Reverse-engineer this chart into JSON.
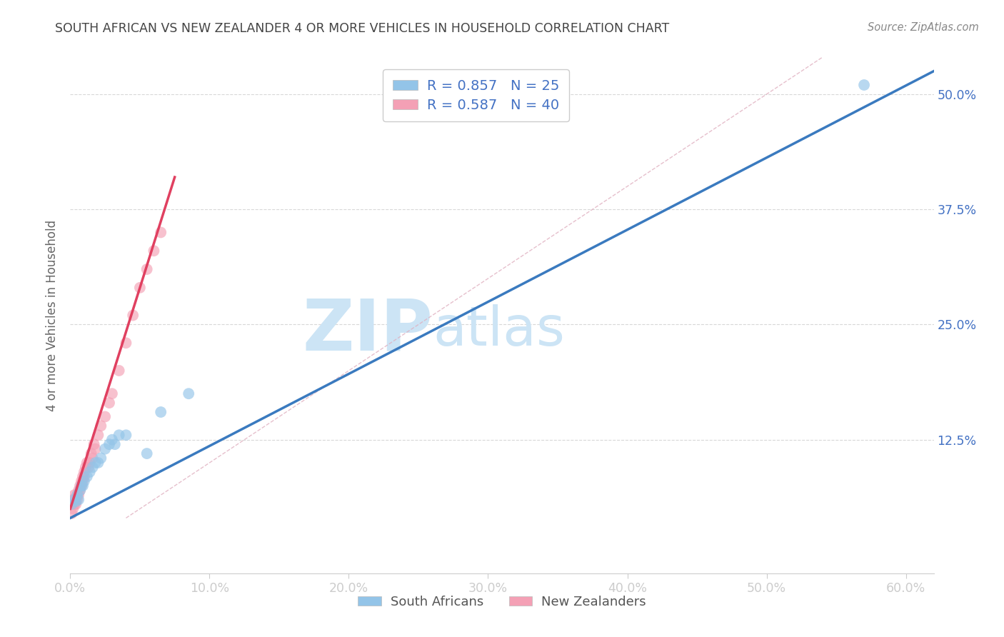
{
  "title": "SOUTH AFRICAN VS NEW ZEALANDER 4 OR MORE VEHICLES IN HOUSEHOLD CORRELATION CHART",
  "source": "Source: ZipAtlas.com",
  "ylabel": "4 or more Vehicles in Household",
  "xlabel_ticks": [
    "0.0%",
    "10.0%",
    "20.0%",
    "30.0%",
    "40.0%",
    "50.0%",
    "60.0%"
  ],
  "ylabel_ticks": [
    "12.5%",
    "25.0%",
    "37.5%",
    "50.0%"
  ],
  "ytick_vals": [
    0.125,
    0.25,
    0.375,
    0.5
  ],
  "xtick_vals": [
    0.0,
    0.1,
    0.2,
    0.3,
    0.4,
    0.5,
    0.6
  ],
  "xlim": [
    0.0,
    0.62
  ],
  "ylim": [
    -0.02,
    0.54
  ],
  "legend_label1": "R = 0.857   N = 25",
  "legend_label2": "R = 0.587   N = 40",
  "legend_bottom_label1": "South Africans",
  "legend_bottom_label2": "New Zealanders",
  "blue_scatter_x": [
    0.001,
    0.003,
    0.004,
    0.005,
    0.006,
    0.007,
    0.008,
    0.009,
    0.01,
    0.012,
    0.014,
    0.016,
    0.018,
    0.02,
    0.022,
    0.025,
    0.028,
    0.03,
    0.032,
    0.035,
    0.04,
    0.055,
    0.065,
    0.085,
    0.57
  ],
  "blue_scatter_y": [
    0.055,
    0.06,
    0.058,
    0.065,
    0.06,
    0.07,
    0.075,
    0.075,
    0.08,
    0.085,
    0.09,
    0.095,
    0.1,
    0.1,
    0.105,
    0.115,
    0.12,
    0.125,
    0.12,
    0.13,
    0.13,
    0.11,
    0.155,
    0.175,
    0.51
  ],
  "pink_scatter_x": [
    0.001,
    0.001,
    0.002,
    0.002,
    0.003,
    0.003,
    0.004,
    0.004,
    0.005,
    0.005,
    0.006,
    0.006,
    0.007,
    0.007,
    0.008,
    0.008,
    0.009,
    0.009,
    0.01,
    0.01,
    0.011,
    0.012,
    0.013,
    0.014,
    0.015,
    0.016,
    0.017,
    0.018,
    0.02,
    0.022,
    0.025,
    0.028,
    0.03,
    0.035,
    0.04,
    0.045,
    0.05,
    0.055,
    0.06,
    0.065
  ],
  "pink_scatter_y": [
    0.055,
    0.045,
    0.06,
    0.05,
    0.065,
    0.055,
    0.06,
    0.055,
    0.065,
    0.06,
    0.07,
    0.065,
    0.075,
    0.07,
    0.08,
    0.075,
    0.085,
    0.08,
    0.09,
    0.085,
    0.095,
    0.1,
    0.095,
    0.1,
    0.11,
    0.105,
    0.12,
    0.115,
    0.13,
    0.14,
    0.15,
    0.165,
    0.175,
    0.2,
    0.23,
    0.26,
    0.29,
    0.31,
    0.33,
    0.35
  ],
  "blue_line_x": [
    0.0,
    0.62
  ],
  "blue_line_y": [
    0.04,
    0.525
  ],
  "pink_line_x": [
    0.0,
    0.075
  ],
  "pink_line_y": [
    0.05,
    0.41
  ],
  "diagonal_line_x": [
    0.04,
    0.54
  ],
  "diagonal_line_y": [
    0.04,
    0.54
  ],
  "blue_color": "#93c4e8",
  "pink_color": "#f4a0b5",
  "blue_line_color": "#3a7abf",
  "pink_line_color": "#e04060",
  "diagonal_color": "#cccccc",
  "title_color": "#444444",
  "axis_color": "#4472c4",
  "tick_color": "#4472c4",
  "grid_color": "#d8d8d8",
  "watermark_zip": "ZIP",
  "watermark_atlas": "atlas",
  "watermark_color": "#cce4f5",
  "background_color": "#ffffff"
}
